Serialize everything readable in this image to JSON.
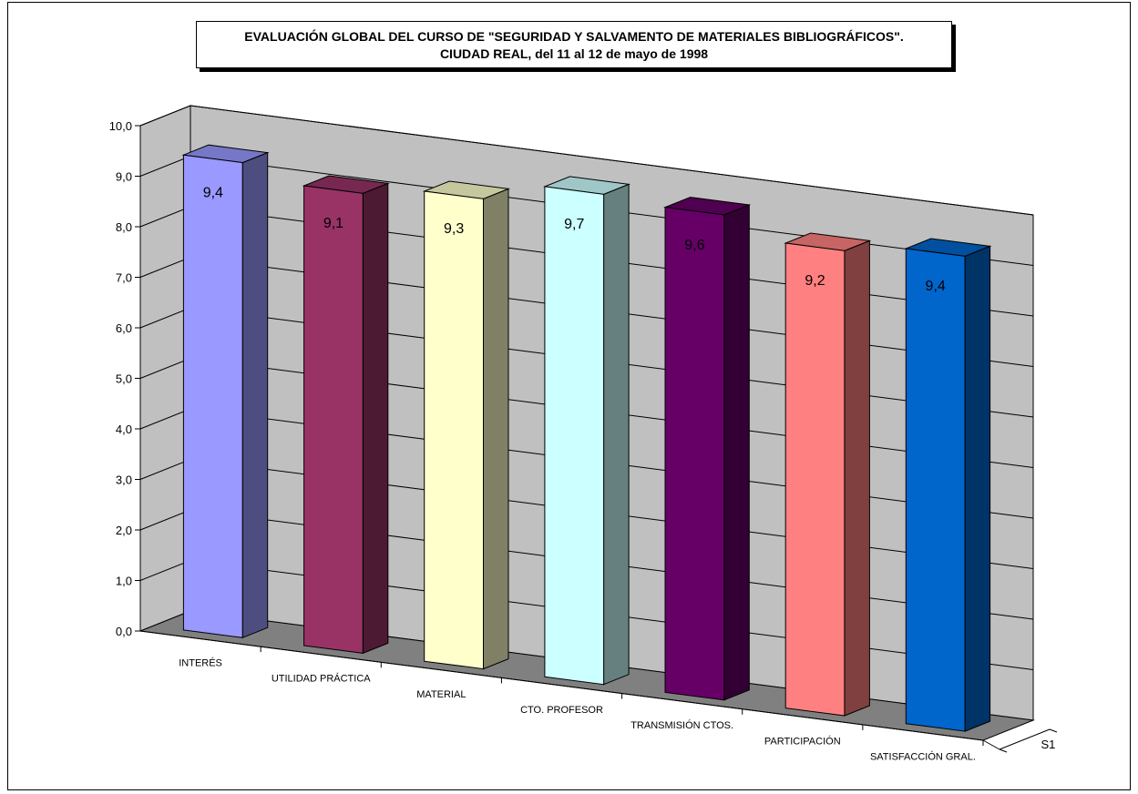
{
  "chart_data": {
    "type": "bar",
    "title": "EVALUACIÓN GLOBAL DEL CURSO DE \"SEGURIDAD Y SALVAMENTO DE MATERIALES BIBLIOGRÁFICOS\".",
    "subtitle": "CIUDAD REAL, del 11 al 12 de mayo de 1998",
    "categories": [
      "INTERÉS",
      "UTILIDAD PRÁCTICA",
      "MATERIAL",
      "CTO. PROFESOR",
      "TRANSMISIÓN CTOS.",
      "PARTICIPACIÓN",
      "SATISFACCIÓN GRAL."
    ],
    "series": [
      {
        "name": "S1",
        "values": [
          9.4,
          9.1,
          9.3,
          9.7,
          9.6,
          9.2,
          9.4
        ],
        "value_labels": [
          "9,4",
          "9,1",
          "9,3",
          "9,7",
          "9,6",
          "9,2",
          "9,4"
        ],
        "colors": [
          "#9999ff",
          "#993366",
          "#ffffcc",
          "#ccffff",
          "#660066",
          "#ff8080",
          "#0066cc"
        ]
      }
    ],
    "ylim": [
      0,
      10
    ],
    "yticks": [
      "0,0",
      "1,0",
      "2,0",
      "3,0",
      "4,0",
      "5,0",
      "6,0",
      "7,0",
      "8,0",
      "9,0",
      "10,0"
    ],
    "grid": true,
    "style": "3d",
    "wall_color": "#c0c0c0",
    "floor_color": "#808080"
  }
}
